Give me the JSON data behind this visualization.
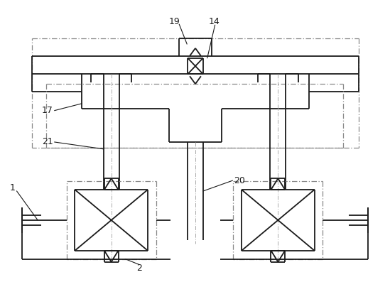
{
  "background_color": "#ffffff",
  "line_color": "#1a1a1a",
  "dash_color": "#888888",
  "label_color": "#1a1a1a",
  "fig_width": 5.49,
  "fig_height": 3.97,
  "dpi": 100
}
